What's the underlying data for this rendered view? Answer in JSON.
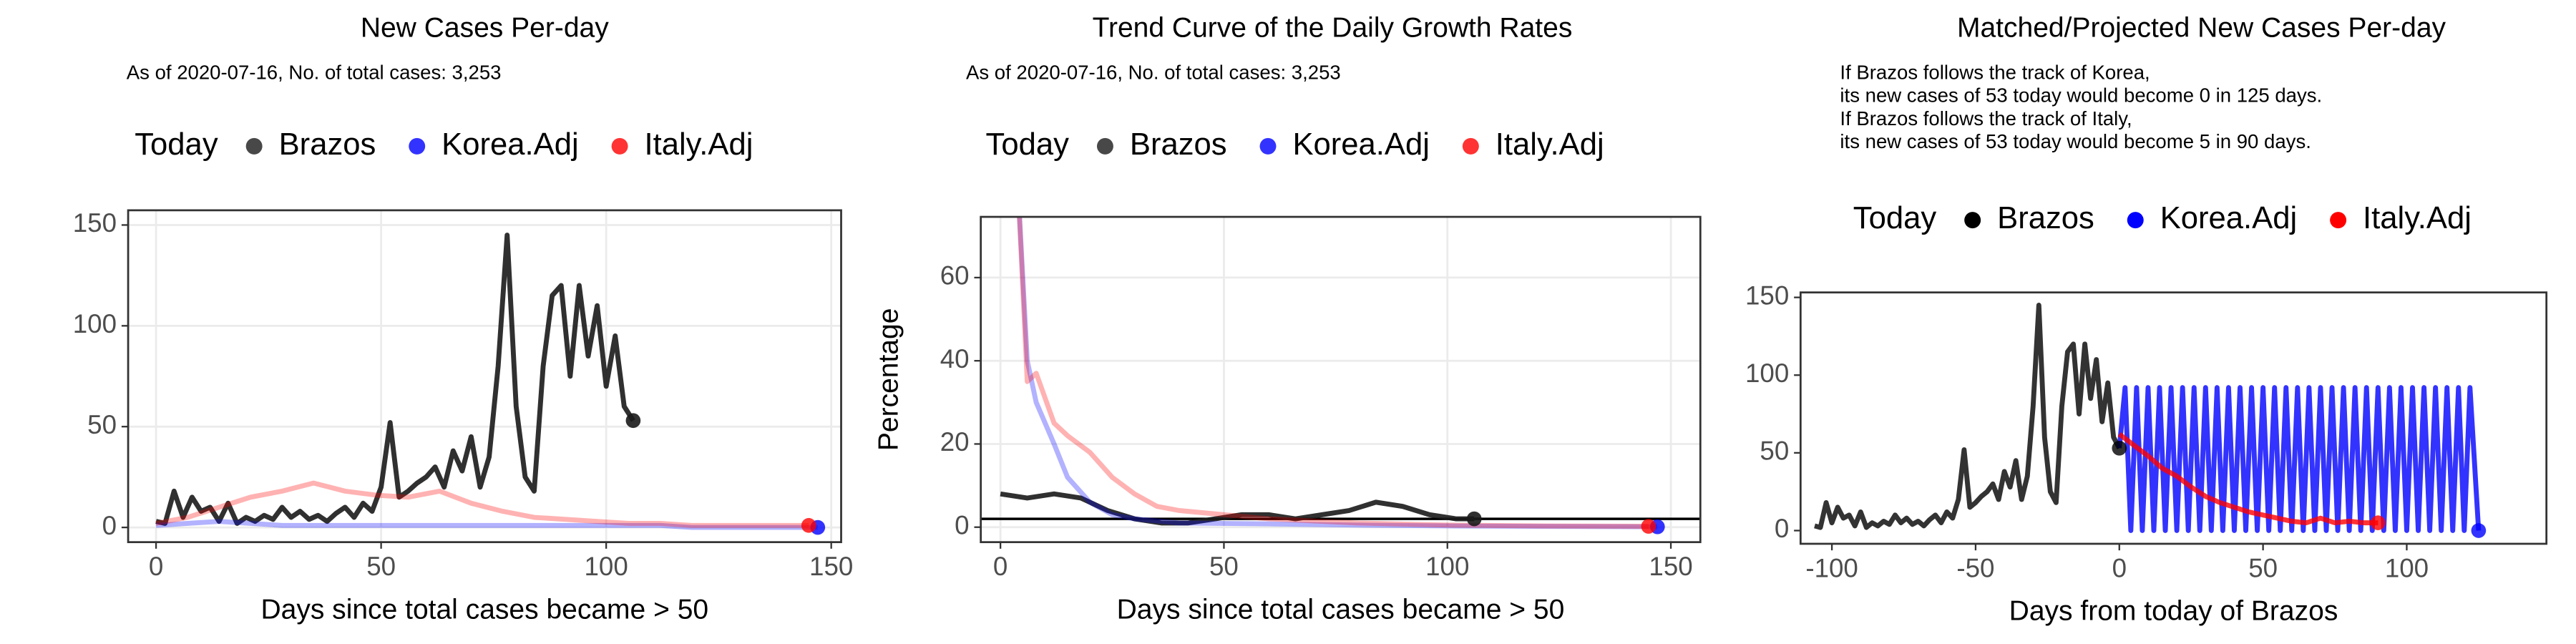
{
  "chart_data": [
    {
      "type": "line",
      "title": "New Cases Per-day",
      "subtitle": [
        "As of 2020-07-16, No. of total cases: 3,253"
      ],
      "legend_title": "Today",
      "x_label": "Days since total cases became > 50",
      "grid": true,
      "xlim": [
        -6.2,
        152.2
      ],
      "ylim": [
        -7.3,
        157.3
      ],
      "xticks": [
        0,
        50,
        100,
        150
      ],
      "yticks": [
        0,
        50,
        100,
        150
      ],
      "series": [
        {
          "name": "Brazos",
          "color": "#1a1a1a",
          "opacity": 0.9,
          "x": [
            0,
            2,
            4,
            6,
            8,
            10,
            12,
            14,
            16,
            18,
            20,
            22,
            24,
            26,
            28,
            30,
            32,
            34,
            36,
            38,
            40,
            42,
            44,
            46,
            48,
            50,
            52,
            54,
            56,
            58,
            60,
            62,
            64,
            66,
            68,
            70,
            72,
            74,
            76,
            78,
            80,
            82,
            84,
            86,
            88,
            90,
            92,
            94,
            96,
            98,
            100,
            102,
            104,
            106
          ],
          "values": [
            3,
            2,
            18,
            5,
            15,
            8,
            10,
            3,
            12,
            2,
            5,
            3,
            6,
            4,
            10,
            5,
            8,
            4,
            6,
            3,
            7,
            10,
            5,
            12,
            8,
            20,
            52,
            15,
            18,
            22,
            25,
            30,
            20,
            38,
            28,
            45,
            20,
            35,
            80,
            145,
            60,
            25,
            18,
            80,
            115,
            120,
            75,
            120,
            85,
            110,
            70,
            95,
            60,
            53
          ]
        },
        {
          "name": "Korea.Adj",
          "color": "#0000ff",
          "opacity": 0.3,
          "x": [
            0,
            7,
            14,
            21,
            28,
            35,
            42,
            49,
            56,
            63,
            70,
            77,
            84,
            91,
            98,
            105,
            112,
            119,
            126,
            133,
            140,
            147
          ],
          "values": [
            1,
            2,
            3,
            2,
            1,
            1,
            1,
            1,
            1,
            1,
            1,
            1,
            1,
            1,
            1,
            1,
            1,
            0,
            0,
            0,
            0,
            0
          ]
        },
        {
          "name": "Italy.Adj",
          "color": "#ff0000",
          "opacity": 0.3,
          "x": [
            0,
            7,
            14,
            21,
            28,
            35,
            42,
            49,
            56,
            63,
            70,
            77,
            84,
            91,
            98,
            105,
            112,
            119,
            126,
            133,
            140,
            145
          ],
          "values": [
            2,
            5,
            10,
            15,
            18,
            22,
            18,
            16,
            15,
            18,
            12,
            8,
            5,
            4,
            3,
            2,
            2,
            1,
            1,
            1,
            1,
            1
          ]
        }
      ]
    },
    {
      "type": "line",
      "title": "Trend Curve of the Daily Growth Rates",
      "subtitle": [
        "As of 2020-07-16, No. of total cases: 3,253"
      ],
      "legend_title": "Today",
      "x_label": "Days since total cases became > 50",
      "y_label": "Percentage",
      "grid": true,
      "hline": 2,
      "xlim": [
        -4.4,
        156.6
      ],
      "ylim": [
        -3.6,
        74.6
      ],
      "xticks": [
        0,
        50,
        100,
        150
      ],
      "yticks": [
        0,
        20,
        40,
        60
      ],
      "series": [
        {
          "name": "Brazos",
          "color": "#1a1a1a",
          "opacity": 0.9,
          "x": [
            0,
            6,
            12,
            18,
            24,
            30,
            36,
            42,
            48,
            54,
            60,
            66,
            72,
            78,
            84,
            90,
            96,
            102,
            106
          ],
          "values": [
            8,
            7,
            8,
            7,
            4,
            2,
            1,
            1,
            2,
            3,
            3,
            2,
            3,
            4,
            6,
            5,
            3,
            2,
            2
          ]
        },
        {
          "name": "Korea.Adj",
          "color": "#0000ff",
          "opacity": 0.3,
          "x": [
            4,
            6,
            8,
            10,
            12,
            15,
            20,
            25,
            30,
            40,
            60,
            80,
            100,
            120,
            147
          ],
          "values": [
            80,
            40,
            30,
            25,
            20,
            12,
            6,
            3,
            2,
            1,
            0.8,
            0.5,
            0.3,
            0.2,
            0.1
          ]
        },
        {
          "name": "Italy.Adj",
          "color": "#ff0000",
          "opacity": 0.3,
          "x": [
            4,
            6,
            8,
            12,
            15,
            20,
            25,
            30,
            35,
            40,
            50,
            60,
            80,
            100,
            120,
            145
          ],
          "values": [
            80,
            35,
            37,
            25,
            22,
            18,
            12,
            8,
            5,
            4,
            3,
            2,
            1,
            0.5,
            0.3,
            0.2
          ]
        }
      ]
    },
    {
      "type": "line",
      "title": "Matched/Projected New Cases Per-day",
      "subtitle": [
        "If Brazos follows the track of Korea,",
        "its new cases of 53 today would become 0 in 125 days.",
        "If Brazos follows the track of Italy,",
        "its new cases of 53 today would become 5 in 90 days."
      ],
      "legend_title": "Today",
      "x_label": "Days from today of Brazos",
      "grid": false,
      "xlim": [
        -110.9,
        148.6
      ],
      "ylim": [
        -8.5,
        153.2
      ],
      "xticks": [
        -100,
        -50,
        0,
        50,
        100
      ],
      "yticks": [
        0,
        50,
        100,
        150
      ],
      "series": [
        {
          "name": "Brazos",
          "color": "#000000",
          "opacity": 0.8,
          "x": [
            -106,
            -104,
            -102,
            -100,
            -98,
            -96,
            -94,
            -92,
            -90,
            -88,
            -86,
            -84,
            -82,
            -80,
            -78,
            -76,
            -74,
            -72,
            -70,
            -68,
            -66,
            -64,
            -62,
            -60,
            -58,
            -56,
            -54,
            -52,
            -50,
            -48,
            -46,
            -44,
            -42,
            -40,
            -38,
            -36,
            -34,
            -32,
            -30,
            -28,
            -26,
            -24,
            -22,
            -20,
            -18,
            -16,
            -14,
            -12,
            -10,
            -8,
            -6,
            -4,
            -2,
            0
          ],
          "values": [
            3,
            2,
            18,
            5,
            15,
            8,
            10,
            3,
            12,
            2,
            5,
            3,
            6,
            4,
            10,
            5,
            8,
            4,
            6,
            3,
            7,
            10,
            5,
            12,
            8,
            20,
            52,
            15,
            18,
            22,
            25,
            30,
            20,
            38,
            28,
            45,
            20,
            35,
            80,
            145,
            60,
            25,
            18,
            80,
            115,
            120,
            75,
            120,
            85,
            110,
            70,
            95,
            60,
            53
          ]
        },
        {
          "name": "Korea.Adj",
          "color": "#0000ff",
          "opacity": 0.8,
          "x": [
            0,
            2,
            4,
            6,
            8,
            10,
            12,
            14,
            16,
            18,
            20,
            22,
            24,
            26,
            28,
            30,
            32,
            34,
            36,
            38,
            40,
            42,
            44,
            46,
            48,
            50,
            52,
            54,
            56,
            58,
            60,
            62,
            64,
            66,
            68,
            70,
            72,
            74,
            76,
            78,
            80,
            82,
            84,
            86,
            88,
            90,
            92,
            94,
            96,
            98,
            100,
            102,
            104,
            106,
            108,
            110,
            112,
            114,
            116,
            118,
            120,
            122,
            125
          ],
          "values": [
            53,
            92,
            0,
            92,
            0,
            92,
            0,
            92,
            0,
            92,
            0,
            92,
            0,
            92,
            0,
            92,
            0,
            92,
            0,
            92,
            0,
            92,
            0,
            92,
            0,
            92,
            0,
            92,
            0,
            92,
            0,
            92,
            0,
            92,
            0,
            92,
            0,
            92,
            0,
            92,
            0,
            92,
            0,
            92,
            0,
            92,
            0,
            92,
            0,
            92,
            0,
            92,
            0,
            92,
            0,
            92,
            0,
            92,
            0,
            92,
            0,
            92,
            0
          ]
        },
        {
          "name": "Italy.Adj",
          "color": "#ff0000",
          "opacity": 0.8,
          "x": [
            0,
            5,
            10,
            15,
            20,
            25,
            30,
            35,
            40,
            45,
            50,
            55,
            60,
            65,
            70,
            75,
            80,
            85,
            90
          ],
          "values": [
            62,
            55,
            48,
            40,
            35,
            28,
            22,
            18,
            15,
            12,
            10,
            8,
            6,
            5,
            8,
            5,
            6,
            5,
            5
          ]
        }
      ]
    }
  ]
}
